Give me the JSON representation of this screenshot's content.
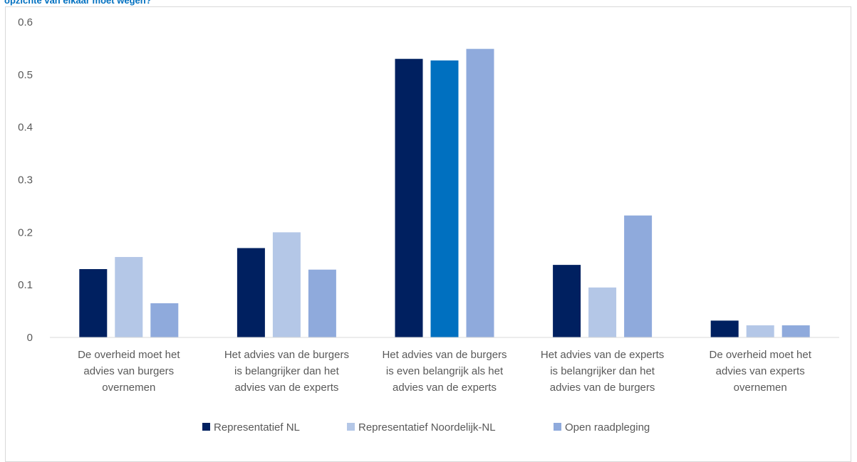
{
  "title": "opzichte van elkaar moet wegen?",
  "chart_data": {
    "type": "bar",
    "categories": [
      [
        "De overheid moet het",
        "advies van burgers",
        "overnemen"
      ],
      [
        "Het advies van de burgers",
        "is belangrijker dan het",
        "advies van de experts"
      ],
      [
        "Het advies van de burgers",
        "is even belangrijk als het",
        "advies van de experts"
      ],
      [
        "Het advies van de experts",
        "is belangrijker dan het",
        "advies van de burgers"
      ],
      [
        "De overheid moet het",
        "advies van experts",
        "overnemen"
      ]
    ],
    "series": [
      {
        "name": "Representatief NL",
        "color": "#002060",
        "values": [
          0.13,
          0.17,
          0.53,
          0.138,
          0.032
        ]
      },
      {
        "name": "Representatief Noordelijk-NL",
        "color": "#b4c7e7",
        "values": [
          0.153,
          0.2,
          0.527,
          0.095,
          0.023
        ]
      },
      {
        "name": "Open raadpleging",
        "color": "#8faadc",
        "values": [
          0.065,
          0.129,
          0.549,
          0.232,
          0.023
        ]
      }
    ],
    "highlight": {
      "series": 1,
      "category": 2,
      "color": "#0070c0"
    },
    "yticks": [
      "0",
      "0.1",
      "0.2",
      "0.3",
      "0.4",
      "0.5",
      "0.6"
    ],
    "ylim": [
      0,
      0.6
    ],
    "grid": false,
    "legend_position": "bottom"
  }
}
